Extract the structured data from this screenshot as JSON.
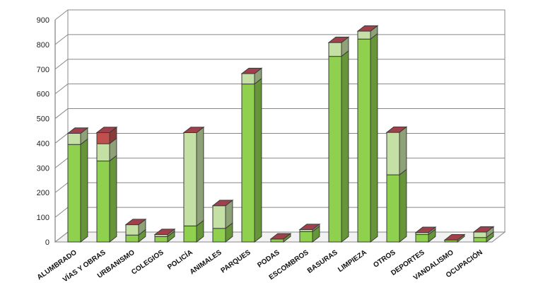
{
  "chart_data": {
    "type": "bar",
    "stacked": true,
    "three_d": true,
    "title": "",
    "xlabel": "",
    "ylabel": "",
    "ylim": [
      0,
      900
    ],
    "yticks": [
      "0",
      "100",
      "200",
      "300",
      "400",
      "500",
      "600",
      "700",
      "800",
      "900"
    ],
    "grid": true,
    "legend": "none",
    "categories": [
      "ALUMBRADO",
      "VÍAS Y OBRAS",
      "URBANISMO",
      "COLEGIOS",
      "POLICÍA",
      "ANIMALES",
      "PARQUES",
      "PODAS",
      "ESCOMBROS",
      "BASURAS",
      "LIMPIEZA",
      "OTROS",
      "DEPORTES",
      "VANDALISMO",
      "OCUPACIÓN"
    ],
    "series": [
      {
        "color": "#8fd14f",
        "values": [
          395,
          328,
          28,
          22,
          65,
          55,
          640,
          12,
          42,
          752,
          822,
          272,
          30,
          8,
          18
        ]
      },
      {
        "color": "#c5e0a5",
        "values": [
          45,
          70,
          42,
          8,
          378,
          92,
          42,
          0,
          8,
          56,
          32,
          172,
          8,
          0,
          22
        ]
      },
      {
        "color": "#c0504d",
        "values": [
          0,
          45,
          0,
          0,
          0,
          0,
          0,
          0,
          0,
          0,
          0,
          0,
          0,
          0,
          0
        ]
      }
    ],
    "top_cap_color": "#a0404a"
  }
}
